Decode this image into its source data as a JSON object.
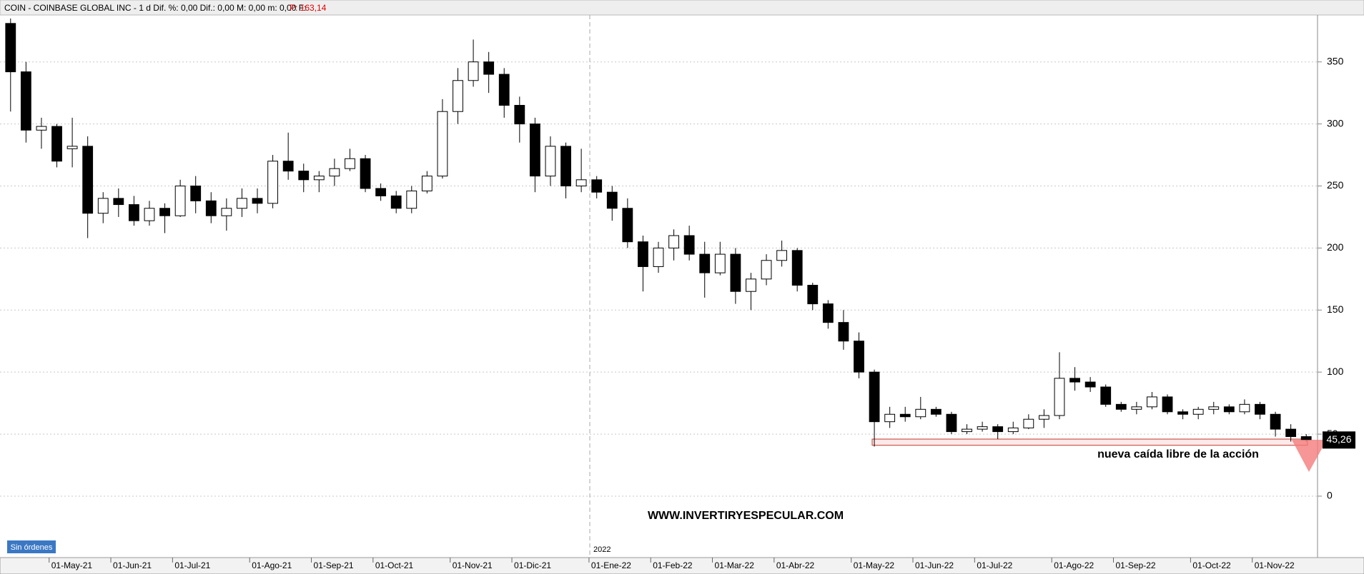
{
  "chart_data": {
    "type": "candlestick",
    "title": "COIN - COINBASE GLOBAL INC -  1 d  Dif. %: 0,00   Dif.: 0,00   M: 0,00   m: 0,00   F:",
    "price_info": "P: 163,14",
    "categories": [
      null,
      null,
      null,
      "01-May-21",
      null,
      null,
      null,
      "01-Jun-21",
      null,
      null,
      null,
      "01-Jul-21",
      null,
      null,
      null,
      null,
      "01-Ago-21",
      null,
      null,
      null,
      "01-Sep-21",
      null,
      null,
      null,
      "01-Oct-21",
      null,
      null,
      null,
      null,
      "01-Nov-21",
      null,
      null,
      null,
      "01-Dic-21",
      null,
      null,
      null,
      null,
      "01-Ene-22",
      null,
      null,
      null,
      "01-Feb-22",
      null,
      null,
      null,
      "01-Mar-22",
      null,
      null,
      null,
      "01-Abr-22",
      null,
      null,
      null,
      null,
      "01-May-22",
      null,
      null,
      null,
      "01-Jun-22",
      null,
      null,
      null,
      "01-Jul-22",
      null,
      null,
      null,
      null,
      "01-Ago-22",
      null,
      null,
      null,
      "01-Sep-22",
      null,
      null,
      null,
      null,
      "01-Oct-22",
      null,
      null,
      null,
      "01-Nov-22",
      null,
      null,
      null
    ],
    "open": [
      381,
      342,
      295,
      298,
      280,
      282,
      228,
      240,
      235,
      222,
      232,
      226,
      250,
      238,
      226,
      232,
      240,
      236,
      270,
      262,
      255,
      258,
      264,
      272,
      248,
      242,
      232,
      246,
      258,
      310,
      335,
      350,
      340,
      315,
      300,
      258,
      282,
      250,
      255,
      245,
      232,
      205,
      185,
      200,
      210,
      195,
      180,
      195,
      165,
      175,
      190,
      198,
      170,
      155,
      140,
      125,
      100,
      60,
      66,
      64,
      70,
      66,
      52,
      54,
      56,
      52,
      55,
      62,
      65,
      95,
      92,
      88,
      74,
      70,
      72,
      80,
      68,
      66,
      70,
      72,
      68,
      74,
      66,
      54,
      48
    ],
    "high": [
      385,
      350,
      305,
      300,
      305,
      290,
      245,
      248,
      242,
      238,
      236,
      255,
      258,
      245,
      240,
      248,
      248,
      275,
      293,
      268,
      262,
      272,
      280,
      275,
      252,
      246,
      250,
      262,
      320,
      345,
      368,
      358,
      345,
      322,
      305,
      290,
      285,
      280,
      258,
      250,
      240,
      210,
      205,
      215,
      218,
      205,
      205,
      200,
      180,
      195,
      206,
      200,
      172,
      158,
      150,
      132,
      102,
      72,
      72,
      80,
      72,
      68,
      58,
      60,
      58,
      60,
      66,
      70,
      116,
      104,
      96,
      90,
      76,
      76,
      84,
      82,
      70,
      72,
      76,
      74,
      78,
      76,
      68,
      58,
      50
    ],
    "low": [
      310,
      285,
      280,
      265,
      265,
      208,
      220,
      225,
      218,
      218,
      212,
      225,
      228,
      220,
      214,
      225,
      228,
      232,
      255,
      245,
      245,
      250,
      262,
      245,
      238,
      228,
      228,
      244,
      256,
      300,
      330,
      325,
      305,
      285,
      245,
      250,
      240,
      245,
      240,
      222,
      200,
      165,
      180,
      190,
      190,
      160,
      178,
      155,
      150,
      170,
      185,
      165,
      150,
      135,
      118,
      95,
      40,
      55,
      60,
      62,
      64,
      50,
      50,
      52,
      46,
      50,
      54,
      55,
      62,
      85,
      84,
      72,
      68,
      66,
      70,
      66,
      62,
      62,
      66,
      66,
      66,
      62,
      48,
      44,
      44
    ],
    "close": [
      342,
      295,
      298,
      270,
      282,
      228,
      240,
      235,
      222,
      232,
      226,
      250,
      238,
      226,
      232,
      240,
      236,
      270,
      262,
      255,
      258,
      264,
      272,
      248,
      242,
      232,
      246,
      258,
      310,
      335,
      350,
      340,
      315,
      300,
      258,
      282,
      250,
      255,
      245,
      232,
      205,
      185,
      200,
      210,
      195,
      180,
      195,
      165,
      175,
      190,
      198,
      170,
      155,
      140,
      125,
      100,
      60,
      66,
      64,
      70,
      66,
      52,
      54,
      56,
      52,
      55,
      62,
      65,
      95,
      92,
      88,
      74,
      70,
      72,
      80,
      68,
      66,
      70,
      72,
      68,
      74,
      66,
      54,
      48,
      45.26
    ],
    "up_color": "#ffffff",
    "down_color": "#000000",
    "ylim": [
      -49.5,
      387.8
    ],
    "yticks": [
      0,
      50,
      100,
      150,
      200,
      250,
      300,
      350
    ],
    "grid": true,
    "year_marker": "2022",
    "last_price": {
      "value": 45.26,
      "label": "45,26"
    },
    "support": {
      "low": 41,
      "high": 46
    },
    "annotation": "nueva caída libre de la acción",
    "watermark": "WWW.INVERTIRYESPECULAR.COM",
    "orders_badge": "Sin órdenes"
  }
}
